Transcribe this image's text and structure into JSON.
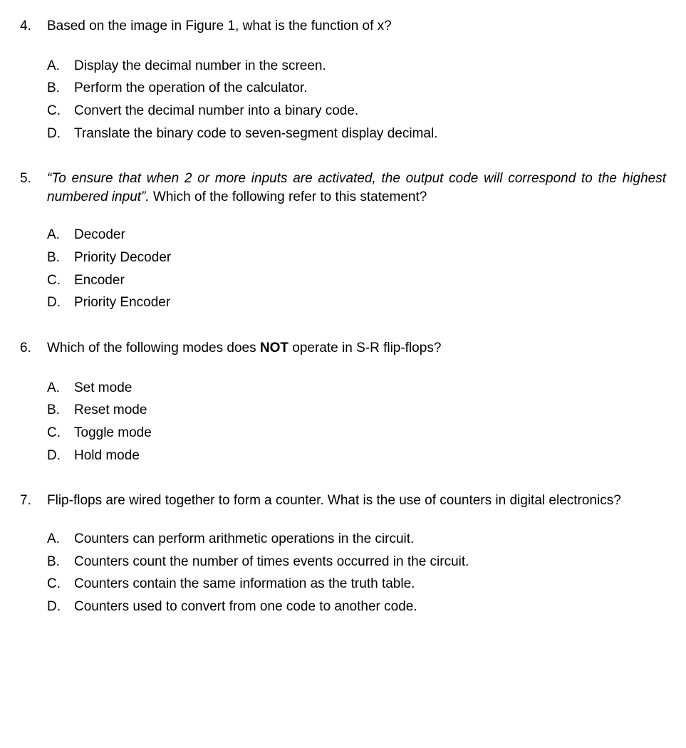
{
  "background_color": "#ffffff",
  "text_color": "#000000",
  "font_family": "Arial",
  "font_size": 19,
  "questions": [
    {
      "number": "4.",
      "text_plain": "Based on the image in Figure 1, what is the function of x?",
      "options": [
        {
          "letter": "A.",
          "text": "Display the decimal number in the screen."
        },
        {
          "letter": "B.",
          "text": "Perform the operation of the calculator."
        },
        {
          "letter": "C.",
          "text": "Convert the decimal number into a binary code."
        },
        {
          "letter": "D.",
          "text": "Translate the binary code to seven-segment display decimal."
        }
      ]
    },
    {
      "number": "5.",
      "text_italic": "“To ensure that when 2 or more inputs are activated, the output code will correspond to the highest numbered input”.",
      "text_rest": " Which of the following refer to this statement?",
      "options": [
        {
          "letter": "A.",
          "text": "Decoder"
        },
        {
          "letter": "B.",
          "text": "Priority Decoder"
        },
        {
          "letter": "C.",
          "text": "Encoder"
        },
        {
          "letter": "D.",
          "text": "Priority Encoder"
        }
      ]
    },
    {
      "number": "6.",
      "text_before_bold": "Which of the following modes does ",
      "text_bold": "NOT",
      "text_after_bold": " operate in S-R flip-flops?",
      "options": [
        {
          "letter": "A.",
          "text": "Set mode"
        },
        {
          "letter": "B.",
          "text": "Reset mode"
        },
        {
          "letter": "C.",
          "text": "Toggle mode"
        },
        {
          "letter": "D.",
          "text": "Hold mode"
        }
      ]
    },
    {
      "number": "7.",
      "text_plain": "Flip-flops are wired together to form a counter. What is the use of counters in digital electronics?",
      "options": [
        {
          "letter": "A.",
          "text": "Counters can perform arithmetic operations in the circuit."
        },
        {
          "letter": "B.",
          "text": "Counters count the number of times events occurred in the circuit."
        },
        {
          "letter": "C.",
          "text": "Counters contain the same information as the truth table."
        },
        {
          "letter": "D.",
          "text": "Counters used to convert from one code to another code."
        }
      ]
    }
  ]
}
